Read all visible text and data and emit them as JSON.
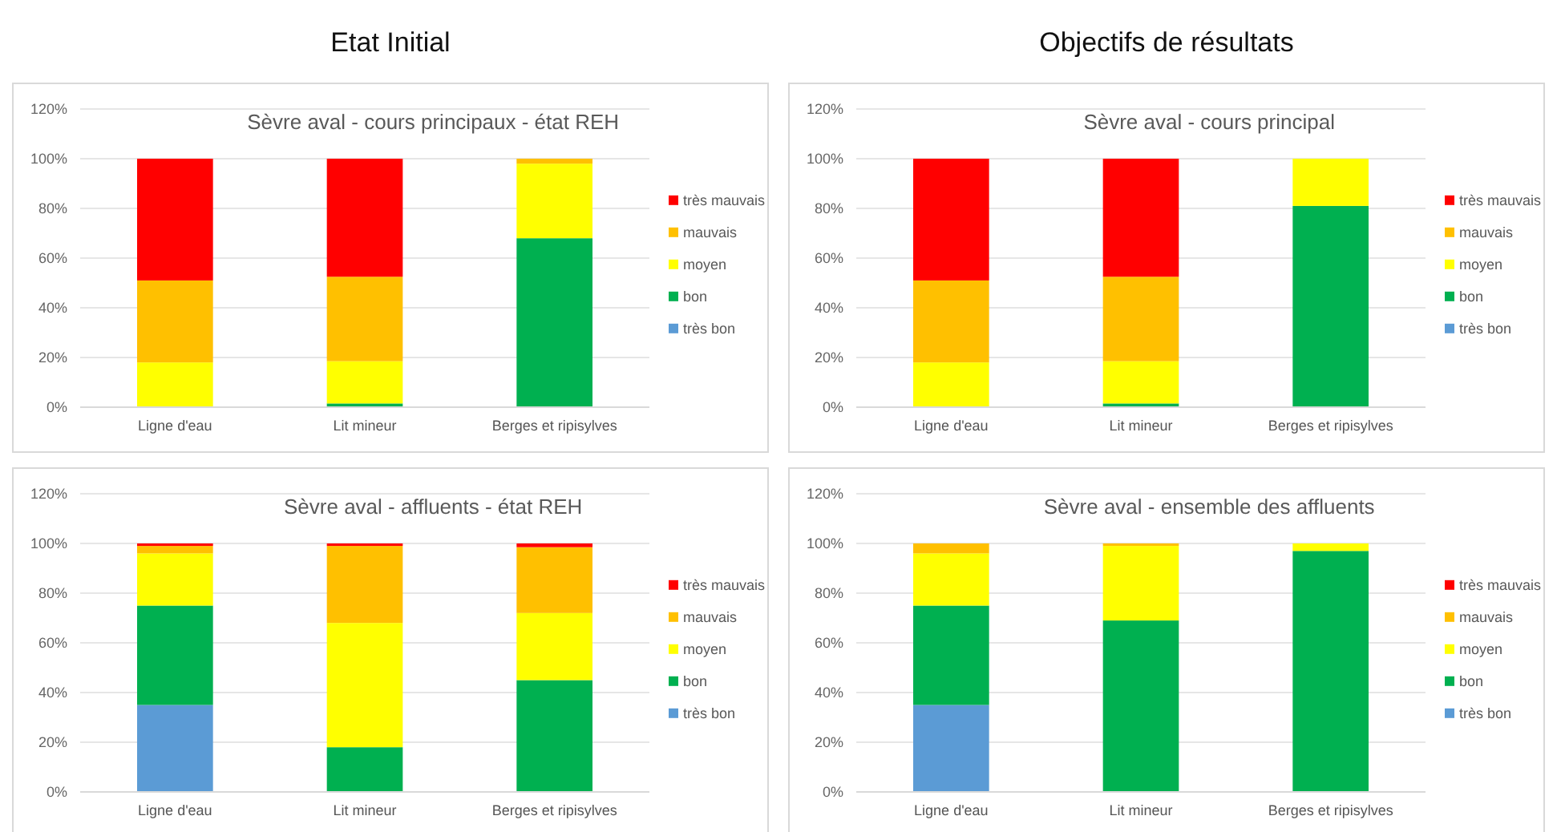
{
  "chart_data": [
    {
      "type": "bar",
      "stacked": true,
      "title": "Sèvre aval - cours principaux - état REH",
      "annotations": [
        "Etat Initial"
      ],
      "categories": [
        "Ligne d'eau",
        "Lit mineur",
        "Berges et ripisylves"
      ],
      "ylim": [
        0,
        120
      ],
      "yticks": [
        {
          "value": 0,
          "label": "0%"
        },
        {
          "value": 20,
          "label": "20%"
        },
        {
          "value": 40,
          "label": "40%"
        },
        {
          "value": 60,
          "label": "60%"
        },
        {
          "value": 80,
          "label": "80%"
        },
        {
          "value": 100,
          "label": "100%"
        },
        {
          "value": 120,
          "label": "120%"
        }
      ],
      "grid": "y",
      "legend": "right",
      "series": [
        {
          "name": "très bon",
          "color": "#5b9bd5",
          "values": [
            0,
            0,
            0
          ]
        },
        {
          "name": "bon",
          "color": "#00b050",
          "values": [
            0,
            1.5,
            68
          ]
        },
        {
          "name": "moyen",
          "color": "#ffff00",
          "values": [
            18,
            17,
            30
          ]
        },
        {
          "name": "mauvais",
          "color": "#ffc000",
          "values": [
            33,
            34,
            2
          ]
        },
        {
          "name": "très mauvais",
          "color": "#ff0000",
          "values": [
            49,
            47.5,
            0
          ]
        }
      ]
    },
    {
      "type": "bar",
      "stacked": true,
      "title": "Sèvre aval - cours principal",
      "annotations": [
        "Objectifs de résultats"
      ],
      "categories": [
        "Ligne d'eau",
        "Lit mineur",
        "Berges et ripisylves"
      ],
      "ylim": [
        0,
        120
      ],
      "yticks": [
        {
          "value": 0,
          "label": "0%"
        },
        {
          "value": 20,
          "label": "20%"
        },
        {
          "value": 40,
          "label": "40%"
        },
        {
          "value": 60,
          "label": "60%"
        },
        {
          "value": 80,
          "label": "80%"
        },
        {
          "value": 100,
          "label": "100%"
        },
        {
          "value": 120,
          "label": "120%"
        }
      ],
      "grid": "y",
      "legend": "right",
      "series": [
        {
          "name": "très bon",
          "color": "#5b9bd5",
          "values": [
            0,
            0,
            0
          ]
        },
        {
          "name": "bon",
          "color": "#00b050",
          "values": [
            0,
            1.5,
            81
          ]
        },
        {
          "name": "moyen",
          "color": "#ffff00",
          "values": [
            18,
            17,
            19
          ]
        },
        {
          "name": "mauvais",
          "color": "#ffc000",
          "values": [
            33,
            34,
            0
          ]
        },
        {
          "name": "très mauvais",
          "color": "#ff0000",
          "values": [
            49,
            47.5,
            0
          ]
        }
      ]
    },
    {
      "type": "bar",
      "stacked": true,
      "title": "Sèvre aval - affluents - état REH",
      "categories": [
        "Ligne d'eau",
        "Lit mineur",
        "Berges et ripisylves"
      ],
      "ylim": [
        0,
        120
      ],
      "yticks": [
        {
          "value": 0,
          "label": "0%"
        },
        {
          "value": 20,
          "label": "20%"
        },
        {
          "value": 40,
          "label": "40%"
        },
        {
          "value": 60,
          "label": "60%"
        },
        {
          "value": 80,
          "label": "80%"
        },
        {
          "value": 100,
          "label": "100%"
        },
        {
          "value": 120,
          "label": "120%"
        }
      ],
      "grid": "y",
      "legend": "right",
      "series": [
        {
          "name": "très bon",
          "color": "#5b9bd5",
          "values": [
            35,
            0,
            0
          ]
        },
        {
          "name": "bon",
          "color": "#00b050",
          "values": [
            40,
            18,
            45
          ]
        },
        {
          "name": "moyen",
          "color": "#ffff00",
          "values": [
            21,
            50,
            27
          ]
        },
        {
          "name": "mauvais",
          "color": "#ffc000",
          "values": [
            3,
            31,
            26.5
          ]
        },
        {
          "name": "très mauvais",
          "color": "#ff0000",
          "values": [
            1,
            1,
            1.5
          ]
        }
      ]
    },
    {
      "type": "bar",
      "stacked": true,
      "title": "Sèvre aval - ensemble des affluents",
      "categories": [
        "Ligne d'eau",
        "Lit mineur",
        "Berges et ripisylves"
      ],
      "ylim": [
        0,
        120
      ],
      "yticks": [
        {
          "value": 0,
          "label": "0%"
        },
        {
          "value": 20,
          "label": "20%"
        },
        {
          "value": 40,
          "label": "40%"
        },
        {
          "value": 60,
          "label": "60%"
        },
        {
          "value": 80,
          "label": "80%"
        },
        {
          "value": 100,
          "label": "100%"
        },
        {
          "value": 120,
          "label": "120%"
        }
      ],
      "grid": "y",
      "legend": "right",
      "series": [
        {
          "name": "très bon",
          "color": "#5b9bd5",
          "values": [
            35,
            0,
            0
          ]
        },
        {
          "name": "bon",
          "color": "#00b050",
          "values": [
            40,
            69,
            97
          ]
        },
        {
          "name": "moyen",
          "color": "#ffff00",
          "values": [
            21,
            30,
            3
          ]
        },
        {
          "name": "mauvais",
          "color": "#ffc000",
          "values": [
            4,
            1,
            0
          ]
        },
        {
          "name": "très mauvais",
          "color": "#ff0000",
          "values": [
            0,
            0,
            0
          ]
        }
      ]
    }
  ]
}
